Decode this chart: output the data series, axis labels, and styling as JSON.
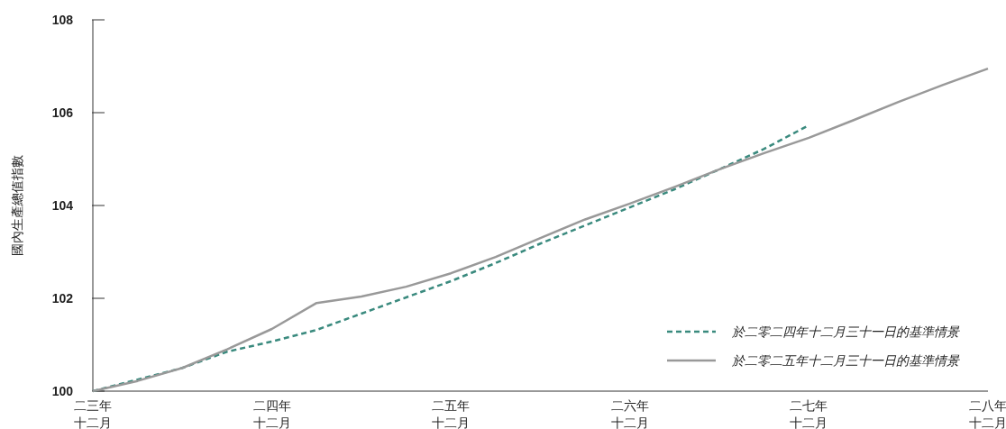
{
  "chart_data": {
    "type": "line",
    "ylabel": "國內生產總值指數",
    "categories": [
      "二三年十二月",
      null,
      null,
      null,
      "二四年十二月",
      null,
      null,
      null,
      "二五年十二月",
      null,
      null,
      null,
      "二六年十二月",
      null,
      null,
      null,
      "二七年十二月",
      null,
      null,
      null,
      "二八年十二月"
    ],
    "series": [
      {
        "name": "於二零二四年十二月三十一日的基準情景",
        "color": "#3a8a7e",
        "line_style": "dashed",
        "values": [
          100.0,
          100.25,
          100.5,
          100.85,
          101.07,
          101.32,
          101.67,
          102.02,
          102.37,
          102.76,
          103.18,
          103.57,
          103.96,
          104.35,
          104.78,
          105.22,
          105.73,
          null,
          null,
          null,
          null
        ]
      },
      {
        "name": "於二零二五年十二月三十一日的基準情景",
        "color": "#999999",
        "line_style": "solid",
        "values": [
          100.0,
          100.22,
          100.5,
          100.9,
          101.34,
          101.9,
          102.04,
          102.25,
          102.54,
          102.89,
          103.3,
          103.7,
          104.04,
          104.4,
          104.78,
          105.13,
          105.46,
          105.84,
          106.23,
          106.6,
          106.95
        ]
      }
    ],
    "ylim": [
      100,
      108
    ],
    "yticks": [
      100,
      102,
      104,
      106,
      108
    ],
    "legend": "bottom right",
    "grid": false
  }
}
